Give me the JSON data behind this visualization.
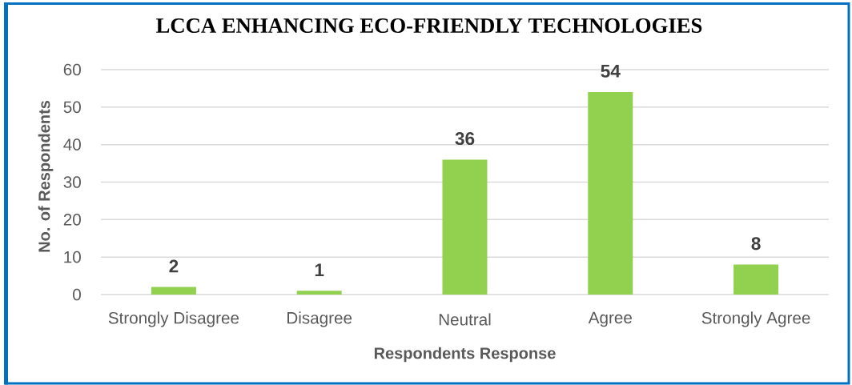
{
  "chart_data": {
    "type": "bar",
    "title": "LCCA ENHANCING ECO-FRIENDLY TECHNOLOGIES",
    "xlabel": "Respondents Response",
    "ylabel": "No. of Respondents",
    "categories": [
      "Strongly Disagree",
      "Disagree",
      "Neutral",
      "Agree",
      "Strongly Agree"
    ],
    "values": [
      2,
      1,
      36,
      54,
      8
    ],
    "color": "#92d050",
    "ylim": [
      0,
      60
    ],
    "yticks": [
      0,
      10,
      20,
      30,
      40,
      50,
      60
    ],
    "grid": "y",
    "data_labels": true
  }
}
